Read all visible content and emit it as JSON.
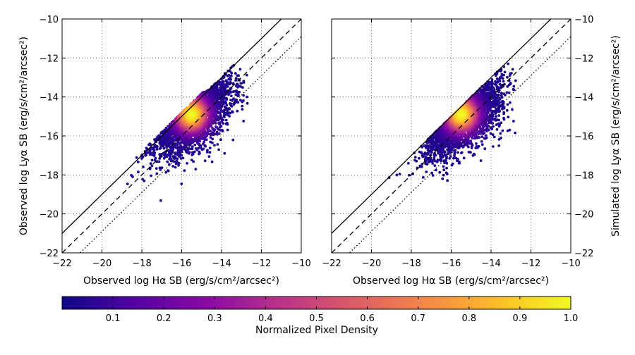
{
  "chart_data": [
    {
      "type": "scatter",
      "xlabel": "Observed log Hα SB (erg/s/cm²/arcsec²)",
      "ylabel": "Observed log Lyα SB (erg/s/cm²/arcsec²)",
      "xlim": [
        -22,
        -10
      ],
      "ylim": [
        -22,
        -10
      ],
      "xticks": [
        "−22",
        "−20",
        "−18",
        "−16",
        "−14",
        "−12",
        "−10"
      ],
      "yticks": [
        "−22",
        "−20",
        "−18",
        "−16",
        "−14",
        "−12",
        "−10"
      ],
      "ytick_side": "left",
      "grid": true,
      "cloud": {
        "peak": [
          -15.5,
          -14.9
        ],
        "x_range": [
          -20.2,
          -12.7
        ],
        "y_range": [
          -19.5,
          -12.0
        ],
        "upper_cutoff": "none"
      },
      "reference_lines": [
        {
          "style": "solid",
          "offset": 1.0
        },
        {
          "style": "dashed",
          "offset": 0.0
        },
        {
          "style": "dotted",
          "offset": -0.9
        }
      ]
    },
    {
      "type": "scatter",
      "xlabel": "Observed log Hα SB (erg/s/cm²/arcsec²)",
      "ylabel": "Simulated log Lyα SB (erg/s/cm²/arcsec²)",
      "xlim": [
        -22,
        -10
      ],
      "ylim": [
        -22,
        -10
      ],
      "xticks": [
        "−22",
        "−20",
        "−18",
        "−16",
        "−14",
        "−12",
        "−10"
      ],
      "yticks": [
        "−22",
        "−20",
        "−18",
        "−16",
        "−14",
        "−12",
        "−10"
      ],
      "ytick_side": "right",
      "grid": true,
      "cloud": {
        "peak": [
          -15.5,
          -14.9
        ],
        "x_range": [
          -20.0,
          -12.7
        ],
        "y_range": [
          -19.3,
          -12.0
        ],
        "upper_cutoff": "solid"
      },
      "reference_lines": [
        {
          "style": "solid",
          "offset": 1.0
        },
        {
          "style": "dashed",
          "offset": 0.0
        },
        {
          "style": "dotted",
          "offset": -0.9
        }
      ]
    }
  ],
  "colorbar": {
    "label": "Normalized Pixel Density",
    "range": [
      0,
      1
    ],
    "ticks": [
      "0.1",
      "0.2",
      "0.3",
      "0.4",
      "0.5",
      "0.6",
      "0.7",
      "0.8",
      "0.9",
      "1.0"
    ],
    "colormap": [
      "#0d0887",
      "#5402a3",
      "#8b0aa5",
      "#b93289",
      "#db5c68",
      "#f48849",
      "#febd2a",
      "#f0f921"
    ]
  }
}
